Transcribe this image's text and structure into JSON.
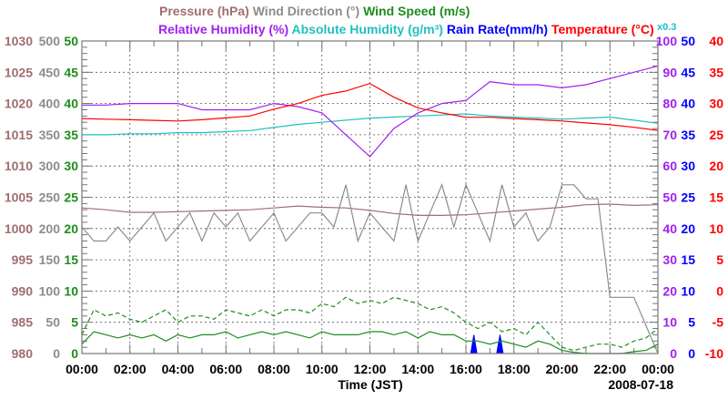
{
  "chart_data": {
    "type": "line",
    "title_line1": [
      {
        "text": "Pressure (hPa)",
        "color": "#a06e6e"
      },
      {
        "text": "Wind Direction (°)",
        "color": "#8c8c8c"
      },
      {
        "text": "Wind Speed (m/s)",
        "color": "#1e8c1e"
      }
    ],
    "title_line2": [
      {
        "text": "Relative Humidity (%)",
        "color": "#a020f0"
      },
      {
        "text": "Absolute Humidity (g/m³)",
        "color": "#20c0c0"
      },
      {
        "text": "Rain Rate(mm/h)",
        "color": "#0000ff"
      },
      {
        "text": "Temperature (°C)",
        "color": "#ff0000"
      }
    ],
    "abs_humidity_scale_note": "x0.3",
    "xlabel": "Time (JST)",
    "date": "2008-07-18",
    "x_ticks": [
      "00:00",
      "02:00",
      "04:00",
      "06:00",
      "08:00",
      "10:00",
      "12:00",
      "14:00",
      "16:00",
      "18:00",
      "20:00",
      "22:00",
      "00:00"
    ],
    "x_range_hours": [
      0,
      24
    ],
    "grid": true,
    "left_axes": [
      {
        "name": "pressure",
        "color": "#a06e6e",
        "range": [
          980,
          1030
        ],
        "ticks": [
          "980",
          "985",
          "990",
          "995",
          "1000",
          "1005",
          "1010",
          "1015",
          "1020",
          "1025",
          "1030"
        ]
      },
      {
        "name": "wind-direction",
        "color": "#8c8c8c",
        "range": [
          0,
          500
        ],
        "ticks": [
          "0",
          "50",
          "100",
          "150",
          "200",
          "250",
          "300",
          "350",
          "400",
          "450",
          "500"
        ]
      },
      {
        "name": "wind-speed",
        "color": "#1e8c1e",
        "range": [
          0,
          50
        ],
        "ticks": [
          "0",
          "5",
          "10",
          "15",
          "20",
          "25",
          "30",
          "35",
          "40",
          "45",
          "50"
        ]
      }
    ],
    "right_axes": [
      {
        "name": "relative-humidity",
        "color": "#a020f0",
        "range": [
          0,
          100
        ],
        "ticks": [
          "0",
          "10",
          "20",
          "30",
          "40",
          "50",
          "60",
          "70",
          "80",
          "90",
          "100"
        ]
      },
      {
        "name": "rain-rate",
        "color": "#0000ff",
        "range": [
          0,
          50
        ],
        "ticks": [
          "0",
          "5",
          "10",
          "15",
          "20",
          "25",
          "30",
          "35",
          "40",
          "45",
          "50"
        ]
      },
      {
        "name": "temperature",
        "color": "#ff0000",
        "range": [
          -10,
          40
        ],
        "ticks": [
          "-10",
          "-5",
          "0",
          "5",
          "10",
          "15",
          "20",
          "25",
          "30",
          "35",
          "40"
        ]
      }
    ],
    "series": [
      {
        "name": "Pressure",
        "axis": "pressure",
        "color": "#a06e6e",
        "step_hours": 1,
        "values": [
          1003.3,
          1003.0,
          1002.6,
          1002.6,
          1002.7,
          1002.8,
          1002.9,
          1003.0,
          1003.3,
          1003.6,
          1003.4,
          1003.3,
          1002.9,
          1002.4,
          1002.1,
          1002.1,
          1002.2,
          1002.5,
          1002.8,
          1003.1,
          1003.4,
          1003.8,
          1003.9,
          1003.7,
          1003.8
        ]
      },
      {
        "name": "Wind Direction",
        "axis": "wind-direction",
        "color": "#8c8c8c",
        "step_hours": 0.5,
        "dash": "",
        "values": [
          202.5,
          180,
          180,
          202.5,
          180,
          202.5,
          225,
          180,
          202.5,
          225,
          180,
          225,
          202.5,
          225,
          180,
          202.5,
          225,
          180,
          202.5,
          225,
          225,
          202.5,
          270,
          180,
          225,
          202.5,
          180,
          270,
          180,
          225,
          270,
          202.5,
          270,
          225,
          180,
          270,
          202.5,
          225,
          180,
          202.5,
          270,
          270,
          247.5,
          247.5,
          90,
          90,
          90,
          45,
          0
        ]
      },
      {
        "name": "Wind Speed (avg)",
        "axis": "wind-speed",
        "color": "#1e8c1e",
        "step_hours": 0.5,
        "dash": "",
        "values": [
          1.5,
          3.5,
          3,
          2.5,
          3,
          2.5,
          3,
          2,
          3,
          2.5,
          3,
          3,
          3.5,
          2.5,
          3,
          3.5,
          3,
          3.5,
          3,
          2.5,
          3.5,
          3,
          3,
          3,
          3.5,
          3.5,
          3,
          3.5,
          2.5,
          3.5,
          3,
          3,
          2,
          2,
          1.5,
          2,
          1.5,
          1,
          2,
          1.5,
          0.5,
          0.2,
          0,
          0,
          0,
          0,
          0.3,
          0.5,
          1.5
        ]
      },
      {
        "name": "Wind Speed (gust)",
        "axis": "wind-speed",
        "color": "#1e8c1e",
        "step_hours": 0.5,
        "dash": "5,3",
        "values": [
          3,
          7,
          6,
          6.5,
          5.5,
          5,
          6,
          7,
          5,
          6,
          6,
          5.5,
          7,
          6.5,
          6,
          7,
          6,
          7,
          7,
          6.5,
          8,
          7.5,
          9,
          8,
          8.5,
          8,
          9,
          8.5,
          8,
          7,
          7.5,
          6.5,
          5,
          4,
          5,
          3.5,
          4,
          3,
          5,
          3,
          1,
          0.5,
          1,
          1.5,
          1.5,
          1,
          2,
          2.5,
          4
        ]
      },
      {
        "name": "Absolute Humidity",
        "axis": "relative-humidity",
        "scale": 0.3,
        "color": "#20c0c0",
        "step_hours": 1,
        "values": [
          21.0,
          21.0,
          21.1,
          21.1,
          21.2,
          21.2,
          21.3,
          21.4,
          21.7,
          22.0,
          22.2,
          22.4,
          22.6,
          22.7,
          22.8,
          22.9,
          23.0,
          22.8,
          22.7,
          22.6,
          22.5,
          22.6,
          22.7,
          22.4,
          22.1
        ]
      },
      {
        "name": "Relative Humidity",
        "axis": "relative-humidity",
        "color": "#a020f0",
        "step_hours": 1,
        "values": [
          79.5,
          79.5,
          80,
          80,
          80,
          78,
          78,
          78,
          80,
          79,
          77,
          70,
          63,
          72,
          77,
          80,
          81,
          87,
          86,
          86,
          85,
          86,
          88,
          90,
          92
        ]
      },
      {
        "name": "Temperature",
        "axis": "temperature",
        "color": "#ff0000",
        "step_hours": 1,
        "values": [
          27.6,
          27.5,
          27.4,
          27.3,
          27.2,
          27.4,
          27.7,
          28.0,
          29.1,
          30.0,
          31.3,
          32.0,
          33.2,
          31.0,
          29.3,
          28.5,
          27.8,
          27.8,
          27.6,
          27.4,
          27.2,
          26.9,
          26.6,
          26.2,
          25.7
        ]
      }
    ],
    "rain": {
      "name": "Rain Rate",
      "axis": "rain-rate",
      "color": "#0000ff",
      "times": [
        0,
        16.2,
        16.33,
        16.46,
        17.28,
        17.42,
        17.55,
        24
      ],
      "values": [
        0,
        0,
        3,
        0,
        0,
        3,
        0,
        0
      ]
    }
  }
}
